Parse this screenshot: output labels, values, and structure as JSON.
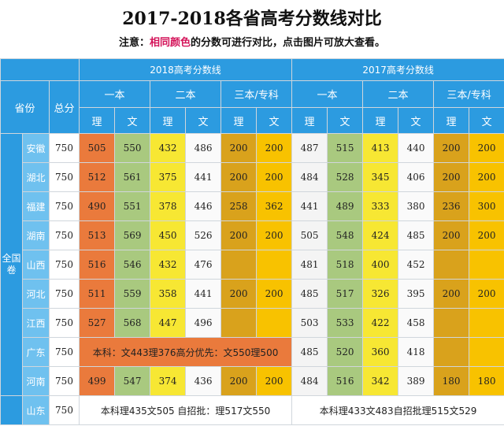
{
  "header": {
    "title": "2017-2018各省高考分数线对比",
    "note_prefix": "注意：",
    "note_highlight": "相同颜色",
    "note_suffix": "的分数可进行对比，点击图片可放大查看。"
  },
  "table": {
    "col_province": "省份",
    "col_total": "总分",
    "exam_label": "全国卷",
    "years": [
      "2018高考分数线",
      "2017高考分数线"
    ],
    "levels": [
      "一本",
      "二本",
      "三本/专科"
    ],
    "subjects": [
      "理",
      "文"
    ],
    "rows": [
      {
        "province": "安徽",
        "total": 750,
        "y2018": [
          505,
          550,
          432,
          486,
          200,
          200
        ],
        "y2017": [
          487,
          515,
          413,
          440,
          200,
          200
        ]
      },
      {
        "province": "湖北",
        "total": 750,
        "y2018": [
          512,
          561,
          375,
          441,
          200,
          200
        ],
        "y2017": [
          484,
          528,
          345,
          406,
          200,
          200
        ]
      },
      {
        "province": "福建",
        "total": 750,
        "y2018": [
          490,
          551,
          378,
          446,
          258,
          362
        ],
        "y2017": [
          441,
          489,
          333,
          380,
          236,
          300
        ]
      },
      {
        "province": "湖南",
        "total": 750,
        "y2018": [
          513,
          569,
          450,
          526,
          200,
          200
        ],
        "y2017": [
          505,
          548,
          424,
          485,
          200,
          200
        ]
      },
      {
        "province": "山西",
        "total": 750,
        "y2018": [
          516,
          546,
          432,
          476
        ],
        "y2017": [
          481,
          518,
          400,
          452
        ]
      },
      {
        "province": "河北",
        "total": 750,
        "y2018": [
          511,
          559,
          358,
          441,
          200,
          200
        ],
        "y2017": [
          485,
          517,
          326,
          395,
          200,
          200
        ]
      },
      {
        "province": "江西",
        "total": 750,
        "y2018": [
          527,
          568,
          447,
          496
        ],
        "y2017": [
          503,
          533,
          422,
          458
        ]
      },
      {
        "province": "广东",
        "total": 750,
        "y2018_note": "本科：文443理376高分优先：文550理500",
        "y2017": [
          485,
          520,
          360,
          418
        ]
      },
      {
        "province": "河南",
        "total": 750,
        "y2018": [
          499,
          547,
          374,
          436,
          200,
          200
        ],
        "y2017": [
          484,
          516,
          342,
          389,
          180,
          180
        ]
      },
      {
        "province": "山东",
        "total": 750,
        "y2018_note": "本科理435文505 自招批：理517文550",
        "y2017_note": "本科理433文483自招批理515文529"
      }
    ]
  }
}
